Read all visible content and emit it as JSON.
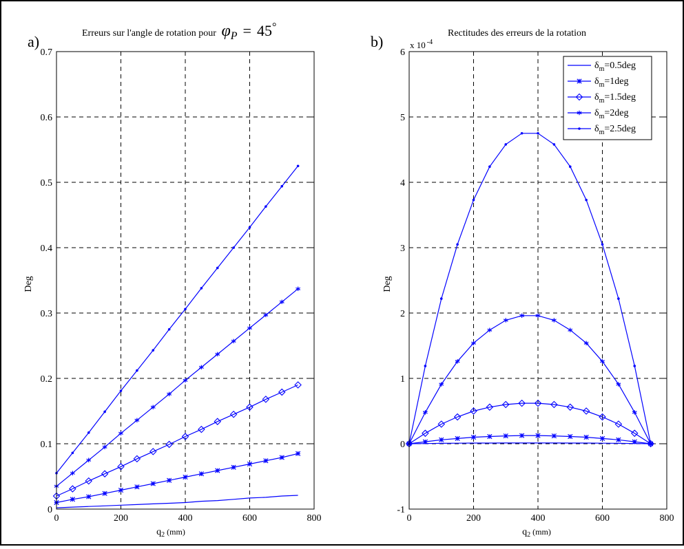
{
  "figure": {
    "colors": {
      "series": "#0000ff",
      "grid": "#000000",
      "axes": "#000000",
      "frame": "#000000"
    }
  },
  "chart_data": [
    {
      "panel_label": "a)",
      "type": "line",
      "title": "Erreurs sur l'angle de rotation pour",
      "title_math": {
        "symbol": "φ",
        "subscript": "P",
        "relation": "=",
        "value": "45",
        "superscript": "°"
      },
      "xlabel": "q",
      "xlabel_sub": "2",
      "xlabel_unit": "(mm)",
      "ylabel": "Deg",
      "xlim": [
        0,
        800
      ],
      "ylim": [
        0,
        0.7
      ],
      "xticks": [
        "0",
        "200",
        "400",
        "600",
        "800"
      ],
      "yticks": [
        "0",
        "0.1",
        "0.2",
        "0.3",
        "0.4",
        "0.5",
        "0.6",
        "0.7"
      ],
      "y_scale_label": "",
      "grid": true,
      "x": [
        0,
        50,
        100,
        150,
        200,
        250,
        300,
        350,
        400,
        450,
        500,
        550,
        600,
        650,
        700,
        750
      ],
      "series": [
        {
          "marker": "none",
          "values": [
            0.002,
            0.003,
            0.004,
            0.005,
            0.006,
            0.007,
            0.008,
            0.009,
            0.01,
            0.012,
            0.013,
            0.015,
            0.017,
            0.018,
            0.02,
            0.021
          ]
        },
        {
          "marker": "asterisk",
          "values": [
            0.01,
            0.015,
            0.019,
            0.024,
            0.029,
            0.034,
            0.039,
            0.044,
            0.049,
            0.054,
            0.059,
            0.064,
            0.069,
            0.074,
            0.079,
            0.085
          ]
        },
        {
          "marker": "diamond",
          "values": [
            0.02,
            0.031,
            0.043,
            0.054,
            0.065,
            0.077,
            0.088,
            0.099,
            0.111,
            0.122,
            0.134,
            0.145,
            0.156,
            0.168,
            0.179,
            0.19
          ]
        },
        {
          "marker": "star",
          "values": [
            0.035,
            0.055,
            0.075,
            0.095,
            0.116,
            0.136,
            0.156,
            0.176,
            0.197,
            0.217,
            0.237,
            0.257,
            0.277,
            0.297,
            0.317,
            0.337
          ]
        },
        {
          "marker": "dot",
          "values": [
            0.055,
            0.086,
            0.117,
            0.149,
            0.181,
            0.212,
            0.243,
            0.275,
            0.306,
            0.338,
            0.369,
            0.4,
            0.431,
            0.463,
            0.494,
            0.525
          ]
        }
      ]
    },
    {
      "panel_label": "b)",
      "type": "line",
      "title": "Rectitudes des erreurs de la rotation",
      "xlabel": "q",
      "xlabel_sub": "2",
      "xlabel_unit": "(mm)",
      "ylabel": "Deg",
      "xlim": [
        0,
        800
      ],
      "ylim": [
        -1,
        6
      ],
      "xticks": [
        "0",
        "200",
        "400",
        "600",
        "800"
      ],
      "yticks": [
        "-1",
        "0",
        "1",
        "2",
        "3",
        "4",
        "5",
        "6"
      ],
      "y_scale_label": "x 10",
      "y_scale_exp": "-4",
      "grid": true,
      "legend": {
        "position": "top-right"
      },
      "x": [
        0,
        50,
        100,
        150,
        200,
        250,
        300,
        350,
        400,
        450,
        500,
        550,
        600,
        650,
        700,
        750
      ],
      "series": [
        {
          "name": "δ",
          "name_sub": "m",
          "name_rest": "=0.5deg",
          "marker": "none",
          "values": [
            0,
            0.003,
            0.006,
            0.008,
            0.01,
            0.011,
            0.012,
            0.012,
            0.012,
            0.012,
            0.011,
            0.01,
            0.008,
            0.006,
            0.003,
            0
          ]
        },
        {
          "name": "δ",
          "name_sub": "m",
          "name_rest": "=1deg",
          "marker": "asterisk",
          "values": [
            0,
            0.03,
            0.06,
            0.08,
            0.1,
            0.11,
            0.12,
            0.125,
            0.125,
            0.12,
            0.11,
            0.1,
            0.08,
            0.06,
            0.03,
            0
          ]
        },
        {
          "name": "δ",
          "name_sub": "m",
          "name_rest": "=1.5deg",
          "marker": "diamond",
          "values": [
            0,
            0.16,
            0.3,
            0.41,
            0.5,
            0.56,
            0.6,
            0.62,
            0.62,
            0.6,
            0.56,
            0.5,
            0.41,
            0.3,
            0.16,
            0
          ]
        },
        {
          "name": "δ",
          "name_sub": "m",
          "name_rest": "=2deg",
          "marker": "star",
          "values": [
            0,
            0.48,
            0.91,
            1.26,
            1.54,
            1.74,
            1.89,
            1.96,
            1.96,
            1.89,
            1.74,
            1.54,
            1.26,
            0.91,
            0.48,
            0
          ]
        },
        {
          "name": "δ",
          "name_sub": "m",
          "name_rest": "=2.5deg",
          "marker": "dot",
          "values": [
            0,
            1.19,
            2.22,
            3.05,
            3.73,
            4.24,
            4.58,
            4.75,
            4.75,
            4.58,
            4.24,
            3.73,
            3.05,
            2.22,
            1.19,
            0
          ]
        }
      ]
    }
  ]
}
